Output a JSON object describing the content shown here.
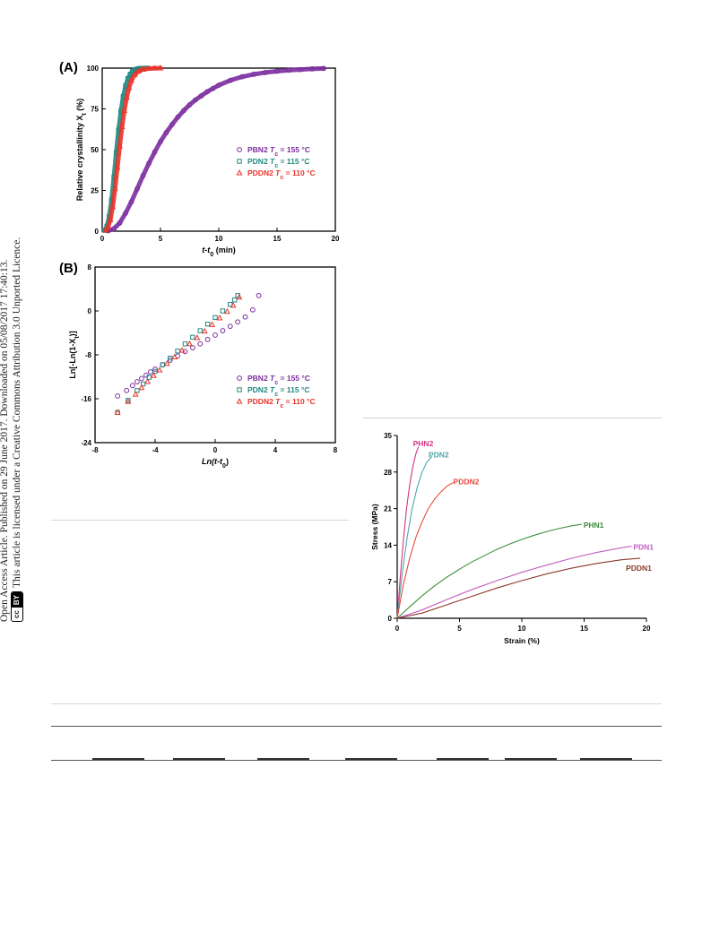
{
  "sidebar": {
    "line1": "Open Access Article. Published on 29 June 2017. Downloaded on 05/08/2017 17:40:13.",
    "line2": "This article is licensed under a Creative Commons Attribution 3.0 Unported Licence.",
    "badge_cc": "cc",
    "badge_by": "BY"
  },
  "chart_data": [
    {
      "panel": "(A)",
      "type": "scatter",
      "xlabel": "t-t",
      "xlabel_sub": "0",
      "xlabel_unit": " (min)",
      "ylabel": "Relative crystallinity X",
      "ylabel_sub": "t",
      "ylabel_unit": " (%)",
      "xlim": [
        0,
        20
      ],
      "ylim": [
        0,
        100
      ],
      "xticks": [
        "0",
        "5",
        "10",
        "15",
        "20"
      ],
      "yticks": [
        "0",
        "25",
        "50",
        "75",
        "100"
      ],
      "legend": "right",
      "series": [
        {
          "name": "PBN2",
          "tc_label": " T",
          "tc_sub": "c",
          "tc_value": " = 155 °C",
          "color": "#7b2d9e",
          "marker": "circle",
          "x": [
            0.5,
            1,
            1.5,
            2,
            2.5,
            3,
            3.5,
            4,
            4.5,
            5,
            5.5,
            6,
            6.5,
            7,
            7.5,
            8,
            8.5,
            9,
            9.5,
            10,
            11,
            12,
            13,
            14,
            15,
            16,
            17,
            18,
            19
          ],
          "y": [
            0.2,
            1.5,
            5,
            11,
            18,
            26,
            34,
            41.5,
            48.5,
            55,
            60.5,
            65.5,
            70,
            74,
            77.5,
            80.5,
            83,
            85.5,
            87.5,
            89.5,
            92.5,
            94.7,
            96.2,
            97.3,
            98.1,
            98.7,
            99.1,
            99.5,
            99.8
          ]
        },
        {
          "name": "PDN2",
          "tc_label": " T",
          "tc_sub": "c",
          "tc_value": " = 115 °C",
          "color": "#1f8a82",
          "marker": "square",
          "x": [
            0.2,
            0.4,
            0.6,
            0.8,
            1.0,
            1.2,
            1.4,
            1.6,
            1.8,
            2.0,
            2.2,
            2.4,
            2.6,
            2.8,
            3.0,
            3.2,
            3.5,
            3.8
          ],
          "y": [
            0.5,
            3,
            9,
            19,
            33,
            48,
            62,
            73.5,
            82.5,
            89,
            93.5,
            96.3,
            98,
            99,
            99.5,
            99.8,
            99.9,
            100
          ]
        },
        {
          "name": "PDDN2",
          "tc_label": " T",
          "tc_sub": "c",
          "tc_value": " = 110 °C",
          "color": "#e8342a",
          "marker": "triangle",
          "x": [
            0.3,
            0.5,
            0.7,
            0.9,
            1.1,
            1.3,
            1.5,
            1.7,
            1.9,
            2.1,
            2.3,
            2.5,
            2.8,
            3.1,
            3.5,
            4.0,
            4.5,
            5.0
          ],
          "y": [
            0.5,
            2.5,
            7,
            15,
            26,
            39,
            52,
            64,
            74,
            82,
            88,
            92.5,
            96,
            98,
            99.2,
            99.7,
            99.9,
            100
          ]
        }
      ]
    },
    {
      "panel": "(B)",
      "type": "scatter",
      "xlabel": "Ln(t-t",
      "xlabel_sub": "0",
      "xlabel_unit": ")",
      "ylabel": "Ln[-Ln(1-X",
      "ylabel_sub": "t",
      "ylabel_unit": ")]",
      "xlim": [
        -8,
        8
      ],
      "ylim": [
        -24,
        8
      ],
      "xticks": [
        "-8",
        "-4",
        "0",
        "4",
        "8"
      ],
      "yticks": [
        "-24",
        "-16",
        "-8",
        "0",
        "8"
      ],
      "legend": "right",
      "series": [
        {
          "name": "PBN2",
          "tc_label": " T",
          "tc_sub": "c",
          "tc_value": " = 155 °C",
          "color": "#7b2d9e",
          "marker": "circle",
          "x": [
            -6.5,
            -5.9,
            -5.5,
            -5.2,
            -4.9,
            -4.6,
            -4.3,
            -4.0,
            -3.5,
            -3.0,
            -2.5,
            -2.0,
            -1.5,
            -1.0,
            -0.5,
            0,
            0.5,
            1.0,
            1.5,
            2.0,
            2.5,
            2.9
          ],
          "y": [
            -15.5,
            -14.5,
            -13.6,
            -12.9,
            -12.3,
            -11.7,
            -11.1,
            -10.6,
            -9.8,
            -9.0,
            -8.2,
            -7.4,
            -6.7,
            -6.0,
            -5.2,
            -4.4,
            -3.6,
            -2.8,
            -2.0,
            -1.1,
            0.2,
            2.8
          ]
        },
        {
          "name": "PDN2",
          "tc_label": " T",
          "tc_sub": "c",
          "tc_value": " = 115 °C",
          "color": "#1f8a82",
          "marker": "square",
          "x": [
            -6.5,
            -5.8,
            -5.2,
            -4.8,
            -4.4,
            -4.0,
            -3.5,
            -3.0,
            -2.5,
            -2.0,
            -1.5,
            -1.0,
            -0.5,
            0,
            0.5,
            1.0,
            1.3,
            1.5
          ],
          "y": [
            -18.5,
            -16.3,
            -14.5,
            -13.3,
            -12.1,
            -11.0,
            -9.8,
            -8.6,
            -7.3,
            -6.0,
            -4.8,
            -3.6,
            -2.4,
            -1.2,
            0,
            1.2,
            2.0,
            2.8
          ]
        },
        {
          "name": "PDDN2",
          "tc_label": " T",
          "tc_sub": "c",
          "tc_value": " = 110 °C",
          "color": "#e8342a",
          "marker": "triangle",
          "x": [
            -6.5,
            -5.8,
            -5.3,
            -4.9,
            -4.5,
            -4.1,
            -3.7,
            -3.2,
            -2.7,
            -2.2,
            -1.7,
            -1.2,
            -0.7,
            -0.2,
            0.3,
            0.8,
            1.2,
            1.6
          ],
          "y": [
            -18.5,
            -16.5,
            -15.2,
            -14.0,
            -12.9,
            -11.8,
            -10.8,
            -9.6,
            -8.4,
            -7.2,
            -6.0,
            -4.9,
            -3.7,
            -2.5,
            -1.3,
            -0.1,
            1.0,
            2.5
          ]
        }
      ]
    },
    {
      "type": "line",
      "xlabel": "Strain (%)",
      "ylabel": "Stress (MPa)",
      "xlim": [
        0,
        20
      ],
      "ylim": [
        0,
        35
      ],
      "xticks": [
        "0",
        "5",
        "10",
        "15",
        "20"
      ],
      "yticks": [
        "0",
        "7",
        "14",
        "21",
        "28",
        "35"
      ],
      "series": [
        {
          "name": "PHN2",
          "color": "#d63384",
          "x": [
            0,
            0.25,
            0.5,
            0.75,
            1.0,
            1.25,
            1.5,
            1.7
          ],
          "y": [
            0,
            8,
            15,
            21,
            25.5,
            29,
            31.5,
            32.8
          ]
        },
        {
          "name": "PDN2",
          "color": "#4ea7a8",
          "x": [
            0,
            0.4,
            0.8,
            1.2,
            1.6,
            2.0,
            2.4,
            2.8
          ],
          "y": [
            0,
            8.5,
            15.5,
            21,
            25,
            28,
            30,
            31
          ]
        },
        {
          "name": "PDDN2",
          "color": "#e8493c",
          "x": [
            0,
            0.5,
            1.0,
            1.5,
            2.0,
            2.5,
            3.0,
            3.5,
            4.0,
            4.5
          ],
          "y": [
            0,
            6.5,
            11.5,
            15.5,
            18.5,
            21,
            22.8,
            24.2,
            25.3,
            26
          ]
        },
        {
          "name": "PHN1",
          "color": "#3c8e3c",
          "x": [
            0,
            1,
            2,
            3,
            4,
            5,
            6,
            7,
            8,
            9,
            10,
            11,
            12,
            13,
            14,
            14.8
          ],
          "y": [
            0,
            2.2,
            4.3,
            6.2,
            7.9,
            9.4,
            10.8,
            12.0,
            13.2,
            14.2,
            15.1,
            15.9,
            16.6,
            17.2,
            17.7,
            18.0
          ]
        },
        {
          "name": "PDN1",
          "color": "#c05fc0",
          "x": [
            0,
            2,
            4,
            6,
            8,
            10,
            12,
            14,
            16,
            18,
            18.8
          ],
          "y": [
            0,
            1.6,
            3.6,
            5.5,
            7.2,
            8.8,
            10.2,
            11.5,
            12.6,
            13.5,
            13.8
          ]
        },
        {
          "name": "PDDN1",
          "color": "#8b3a2a",
          "x": [
            0,
            2,
            4,
            6,
            8,
            10,
            12,
            14,
            16,
            18,
            19.5
          ],
          "y": [
            0,
            1.0,
            2.6,
            4.2,
            5.8,
            7.2,
            8.5,
            9.6,
            10.5,
            11.2,
            11.5
          ]
        }
      ]
    }
  ]
}
